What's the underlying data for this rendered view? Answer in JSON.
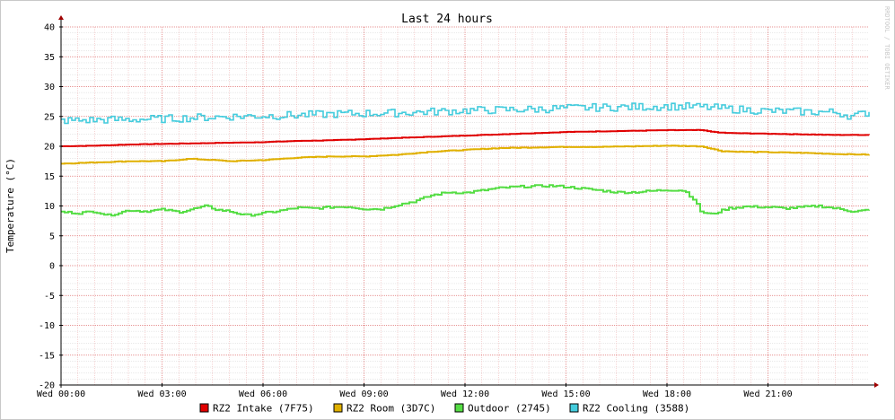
{
  "chart_data": {
    "type": "line",
    "title": "Last 24 hours",
    "ylabel": "Temperature (°C)",
    "xlabel": "",
    "watermark": "RRDTOOL / TOBI OETIKER",
    "ylim": [
      -20,
      40
    ],
    "y_ticks": [
      40,
      35,
      30,
      25,
      20,
      15,
      10,
      5,
      0,
      -5,
      -10,
      -15,
      -20
    ],
    "x_range_hours": [
      0,
      24
    ],
    "x_ticks": [
      {
        "h": 0,
        "label": "Wed 00:00"
      },
      {
        "h": 3,
        "label": "Wed 03:00"
      },
      {
        "h": 6,
        "label": "Wed 06:00"
      },
      {
        "h": 9,
        "label": "Wed 09:00"
      },
      {
        "h": 12,
        "label": "Wed 12:00"
      },
      {
        "h": 15,
        "label": "Wed 15:00"
      },
      {
        "h": 18,
        "label": "Wed 18:00"
      },
      {
        "h": 21,
        "label": "Wed 21:00"
      }
    ],
    "grid": true,
    "legend_position": "bottom",
    "series": [
      {
        "name": "RZ2 Intake (7F75)",
        "color": "#e00000",
        "points": [
          [
            0,
            20.0
          ],
          [
            1,
            20.1
          ],
          [
            2,
            20.3
          ],
          [
            3,
            20.4
          ],
          [
            4,
            20.5
          ],
          [
            5,
            20.6
          ],
          [
            6,
            20.7
          ],
          [
            7,
            20.9
          ],
          [
            8,
            21.0
          ],
          [
            9,
            21.2
          ],
          [
            10,
            21.4
          ],
          [
            11,
            21.6
          ],
          [
            12,
            21.8
          ],
          [
            13,
            22.0
          ],
          [
            14,
            22.2
          ],
          [
            15,
            22.4
          ],
          [
            16,
            22.5
          ],
          [
            17,
            22.6
          ],
          [
            18,
            22.7
          ],
          [
            19,
            22.7
          ],
          [
            19.5,
            22.3
          ],
          [
            20,
            22.2
          ],
          [
            21,
            22.1
          ],
          [
            22,
            22.0
          ],
          [
            23,
            21.9
          ],
          [
            24,
            21.9
          ]
        ]
      },
      {
        "name": "RZ2 Room (3D7C)",
        "color": "#e0b000",
        "points": [
          [
            0,
            17.1
          ],
          [
            1,
            17.3
          ],
          [
            2,
            17.5
          ],
          [
            3,
            17.5
          ],
          [
            3.8,
            17.9
          ],
          [
            4.5,
            17.7
          ],
          [
            5,
            17.5
          ],
          [
            6,
            17.7
          ],
          [
            7,
            18.1
          ],
          [
            8,
            18.3
          ],
          [
            9,
            18.3
          ],
          [
            10,
            18.6
          ],
          [
            11,
            19.1
          ],
          [
            12,
            19.4
          ],
          [
            13,
            19.7
          ],
          [
            14,
            19.8
          ],
          [
            15,
            19.9
          ],
          [
            16,
            19.9
          ],
          [
            17,
            20.0
          ],
          [
            18,
            20.1
          ],
          [
            19,
            20.0
          ],
          [
            19.6,
            19.2
          ],
          [
            20,
            19.1
          ],
          [
            21,
            19.0
          ],
          [
            22,
            18.9
          ],
          [
            23,
            18.7
          ],
          [
            24,
            18.6
          ]
        ]
      },
      {
        "name": "Outdoor (2745)",
        "color": "#55dd44",
        "points": [
          [
            0,
            9.0
          ],
          [
            0.5,
            8.8
          ],
          [
            1,
            9.1
          ],
          [
            1.4,
            8.4
          ],
          [
            2,
            9.3
          ],
          [
            2.5,
            9.1
          ],
          [
            3,
            9.4
          ],
          [
            3.5,
            9.0
          ],
          [
            4,
            9.6
          ],
          [
            4.3,
            10.0
          ],
          [
            4.6,
            9.4
          ],
          [
            5,
            9.1
          ],
          [
            5.5,
            8.4
          ],
          [
            6,
            8.8
          ],
          [
            6.5,
            9.2
          ],
          [
            7,
            9.7
          ],
          [
            7.5,
            9.6
          ],
          [
            8,
            9.8
          ],
          [
            8.5,
            9.9
          ],
          [
            9,
            9.5
          ],
          [
            9.5,
            9.5
          ],
          [
            10,
            10.2
          ],
          [
            10.5,
            10.8
          ],
          [
            11,
            11.8
          ],
          [
            11.5,
            12.3
          ],
          [
            12,
            12.2
          ],
          [
            12.5,
            12.6
          ],
          [
            13,
            13.0
          ],
          [
            13.5,
            13.2
          ],
          [
            14,
            13.3
          ],
          [
            14.5,
            13.4
          ],
          [
            15,
            13.2
          ],
          [
            15.5,
            12.9
          ],
          [
            16,
            12.6
          ],
          [
            16.5,
            12.3
          ],
          [
            17,
            12.3
          ],
          [
            17.5,
            12.5
          ],
          [
            18,
            12.7
          ],
          [
            18.5,
            12.6
          ],
          [
            18.8,
            11.0
          ],
          [
            19.0,
            9.0
          ],
          [
            19.3,
            8.6
          ],
          [
            19.8,
            9.6
          ],
          [
            20.3,
            9.9
          ],
          [
            21,
            9.8
          ],
          [
            21.5,
            9.6
          ],
          [
            22,
            9.8
          ],
          [
            22.5,
            10.0
          ],
          [
            23,
            9.6
          ],
          [
            23.5,
            9.1
          ],
          [
            24,
            9.3
          ]
        ]
      },
      {
        "name": "RZ2 Cooling (3588)",
        "color": "#44ccdd",
        "points": [
          [
            0,
            24.3
          ],
          [
            1,
            24.4
          ],
          [
            2,
            24.5
          ],
          [
            3,
            24.6
          ],
          [
            4,
            24.8
          ],
          [
            5,
            25.0
          ],
          [
            6,
            25.1
          ],
          [
            7,
            25.2
          ],
          [
            8,
            25.4
          ],
          [
            9,
            25.5
          ],
          [
            10,
            25.6
          ],
          [
            11,
            25.8
          ],
          [
            12,
            26.0
          ],
          [
            13,
            26.1
          ],
          [
            14,
            26.2
          ],
          [
            15,
            26.4
          ],
          [
            16,
            26.5
          ],
          [
            17,
            26.6
          ],
          [
            18,
            26.7
          ],
          [
            19,
            26.6
          ],
          [
            20,
            26.2
          ],
          [
            21,
            25.9
          ],
          [
            22,
            25.8
          ],
          [
            23,
            25.7
          ],
          [
            23.5,
            25.0
          ],
          [
            24,
            25.8
          ]
        ]
      }
    ]
  }
}
